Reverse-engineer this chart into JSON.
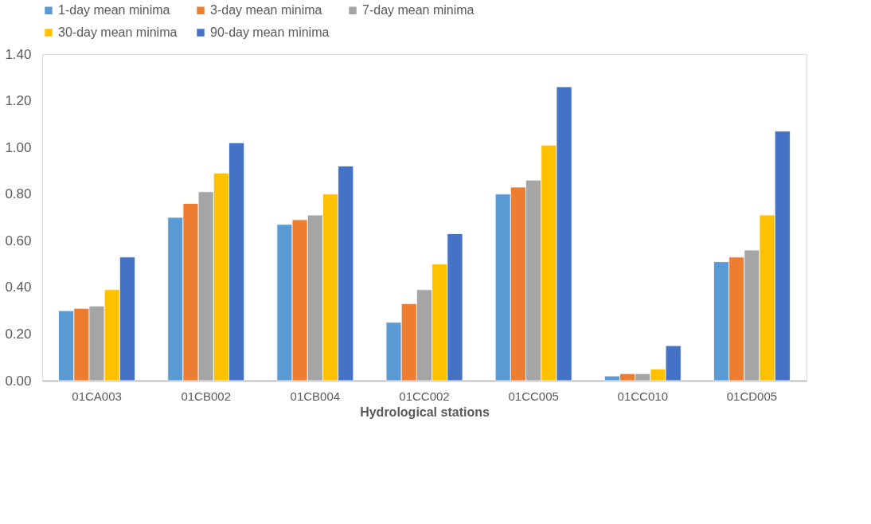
{
  "chart_data": {
    "type": "bar",
    "xlabel": "Hydrological stations",
    "categories": [
      "01CA003",
      "01CB002",
      "01CB004",
      "01CC002",
      "01CC005",
      "01CC010",
      "01CD005"
    ],
    "series": [
      {
        "name": "1-day mean minima",
        "color": "#5b9bd5",
        "values": [
          0.3,
          0.7,
          0.67,
          0.25,
          0.8,
          0.02,
          0.51
        ]
      },
      {
        "name": "3-day mean minima",
        "color": "#ed7d31",
        "values": [
          0.31,
          0.76,
          0.69,
          0.33,
          0.83,
          0.03,
          0.53
        ]
      },
      {
        "name": "7-day mean minima",
        "color": "#a5a5a5",
        "values": [
          0.32,
          0.81,
          0.71,
          0.39,
          0.86,
          0.03,
          0.56
        ]
      },
      {
        "name": "30-day mean minima",
        "color": "#ffc000",
        "values": [
          0.39,
          0.89,
          0.8,
          0.5,
          1.01,
          0.05,
          0.71
        ]
      },
      {
        "name": "90-day mean minima",
        "color": "#4472c4",
        "values": [
          0.53,
          1.02,
          0.92,
          0.63,
          1.26,
          0.15,
          1.07
        ]
      }
    ],
    "ylim": [
      0,
      1.4
    ],
    "yticks": [
      {
        "value": 0,
        "label": "0.00"
      },
      {
        "value": 0.2,
        "label": "0.20"
      },
      {
        "value": 0.4,
        "label": "0.40"
      },
      {
        "value": 0.6,
        "label": "0.60"
      },
      {
        "value": 0.8,
        "label": "0.80"
      },
      {
        "value": 1.0,
        "label": "1.00"
      },
      {
        "value": 1.2,
        "label": "1.20"
      },
      {
        "value": 1.4,
        "label": "1.40"
      }
    ],
    "grid": false,
    "legend": "top"
  }
}
